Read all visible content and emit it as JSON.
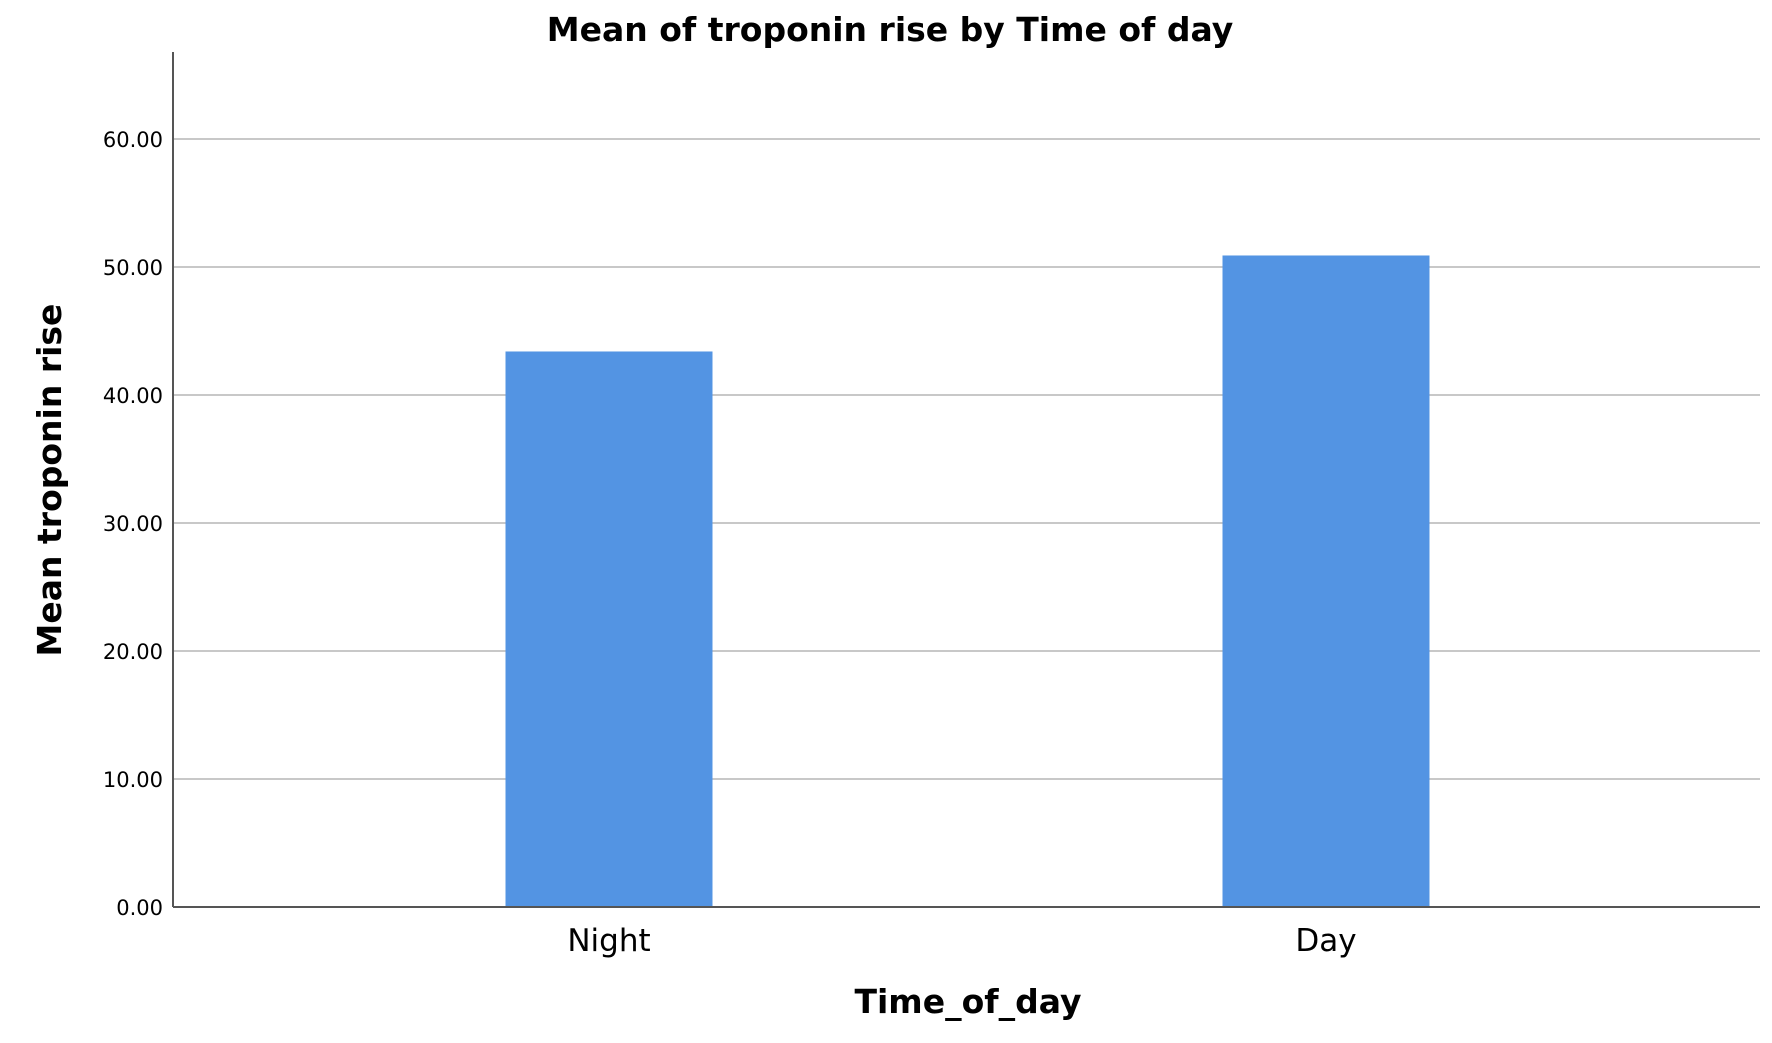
{
  "chart_data": {
    "type": "bar",
    "title": "Mean of troponin rise by Time of day",
    "xlabel": "Time_of_day",
    "ylabel": "Mean troponin rise",
    "categories": [
      "Night",
      "Day"
    ],
    "values": [
      43.4,
      50.9
    ],
    "ylim": [
      0,
      66
    ],
    "yticks": [
      "0.00",
      "10.00",
      "20.00",
      "30.00",
      "40.00",
      "50.00",
      "60.00"
    ],
    "ytick_values": [
      0,
      10,
      20,
      30,
      40,
      50,
      60
    ],
    "grid": true,
    "legend": "none",
    "bar_color": "#5394e3"
  }
}
